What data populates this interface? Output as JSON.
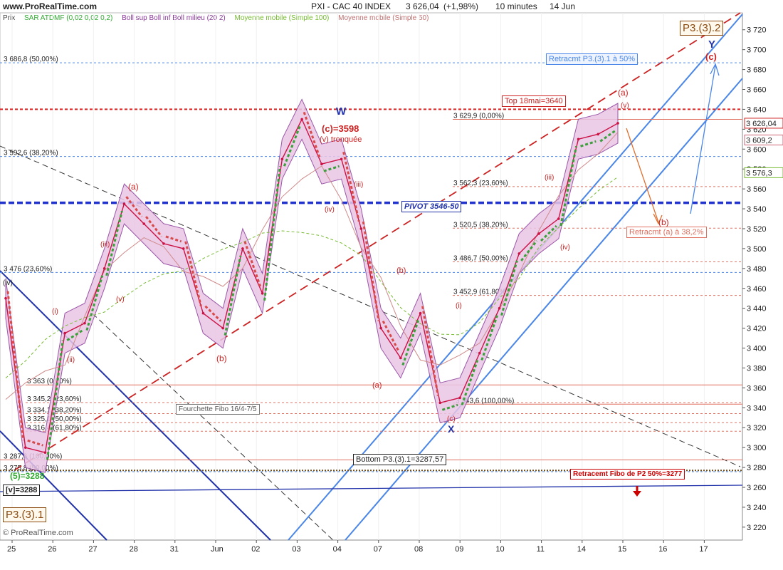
{
  "header": {
    "site": "www.ProRealTime.com",
    "title": "PXI - CAC 40 INDEX",
    "price": "3 626,04",
    "change": "(+1,98%)",
    "timeframe": "10 minutes",
    "date": "14 Jun"
  },
  "legend": {
    "prix": "Prix",
    "sar": "SAR ATDMF (0,02 0,02 0,2)",
    "boll": "Boll sup Boll inf Boll milieu (20 2)",
    "mm100": "Moyenne mobile (Simple 100)",
    "mm50": "Moyenne mobile (Simple 50)"
  },
  "colors": {
    "price": "#cc1144",
    "boll_fill": "#e9c6e6",
    "boll_line": "#8a3a99",
    "sar_up": "#3aa03a",
    "sar_down": "#d84a4a",
    "mm100": "#77bb33",
    "mm50": "#d08a8a",
    "pivot": "#2233cc",
    "fib_line": "#e07060",
    "channel": "#4a86e8",
    "down_channel": "#2233aa",
    "trend_dashed": "#cc2222"
  },
  "chart_data": {
    "type": "line",
    "title": "PXI - CAC 40 INDEX",
    "timeframe": "10 minutes",
    "ylim": [
      3207,
      3737
    ],
    "y_ticks": [
      "3 220",
      "3 240",
      "3 260",
      "3 280",
      "3 300",
      "3 320",
      "3 340",
      "3 360",
      "3 380",
      "3 400",
      "3 420",
      "3 440",
      "3 460",
      "3 480",
      "3 500",
      "3 520",
      "3 540",
      "3 560",
      "3 580",
      "3 600",
      "3 620",
      "3 640",
      "3 660",
      "3 680",
      "3 700",
      "3 720"
    ],
    "x_ticks": [
      "25",
      "26",
      "27",
      "28",
      "31",
      "Jun",
      "02",
      "03",
      "04",
      "07",
      "08",
      "09",
      "10",
      "11",
      "14",
      "15",
      "16",
      "17"
    ],
    "series": [
      {
        "name": "PXI",
        "x": [
          "25",
          "25.5",
          "26",
          "26.5",
          "27",
          "27.5",
          "28",
          "28.5",
          "31",
          "31.5",
          "Jun",
          "Jun.5",
          "02",
          "02.5",
          "03",
          "03.2",
          "03.5",
          "04",
          "04.5",
          "07",
          "07.5",
          "08",
          "08.5",
          "09",
          "09.5",
          "10",
          "10.5",
          "11",
          "11.5",
          "14",
          "14.5",
          "15"
        ],
        "values": [
          3450,
          3300,
          3295,
          3415,
          3425,
          3480,
          3545,
          3525,
          3505,
          3500,
          3435,
          3420,
          3500,
          3455,
          3590,
          3630,
          3585,
          3590,
          3520,
          3420,
          3390,
          3435,
          3345,
          3350,
          3395,
          3440,
          3495,
          3515,
          3530,
          3610,
          3615,
          3626
        ]
      }
    ],
    "levels": [
      {
        "label": "3 686,8 (50,00%)",
        "value": 3686.8
      },
      {
        "label": "3 629,9 (0,00%)",
        "value": 3629.9
      },
      {
        "label": "3 592,6 (38,20%)",
        "value": 3592.6
      },
      {
        "label": "3 562,3 (23,60%)",
        "value": 3562.3
      },
      {
        "label": "3 520,5 (38,20%)",
        "value": 3520.5
      },
      {
        "label": "3 486,7 (50,00%)",
        "value": 3486.7
      },
      {
        "label": "3 476 (23,60%)",
        "value": 3476
      },
      {
        "label": "3 452,9 (61,80%)",
        "value": 3452.9
      },
      {
        "label": "3 363 (0,00%)",
        "value": 3363
      },
      {
        "label": "3 345,2 (23,60%)",
        "value": 3345.2
      },
      {
        "label": "3 343,6 (100,00%)",
        "value": 3343.6
      },
      {
        "label": "3 334,1 (38,20%)",
        "value": 3334.1
      },
      {
        "label": "3 325,1 (50,00%)",
        "value": 3325.1
      },
      {
        "label": "3 316,4 (61,80%)",
        "value": 3316.4
      },
      {
        "label": "3 287,6 (100,00%)",
        "value": 3287.6
      },
      {
        "label": "3 275,8 (50,00%)",
        "value": 3275.8
      }
    ],
    "horizontal_lines": {
      "top": 3640,
      "pivot": 3546,
      "bottom": 3287.57,
      "fibo_p2": 3277
    },
    "current_price_tags": [
      "3 626,04",
      "3 609,2",
      "3 576,3"
    ]
  },
  "annotations": {
    "p3_top": "P3.(3).2",
    "p3_bottom": "P3.(3).1",
    "y": "Y",
    "c_paren": "(c)",
    "w": "W",
    "c3598": "(c)=3598",
    "v_tronquee": "(v) tronquée",
    "a_paren_right": "(a)",
    "v_small": "(v)",
    "b_paren": "(b)",
    "iii_right": "(iii)",
    "iv_right": "(iv)",
    "a_left": "(a)",
    "b_left": "(b)",
    "b_mid": "(b)",
    "a_mid": "(a)",
    "c_mid": "(c)",
    "x": "X",
    "i_mid": "(i)",
    "iii_mid": "(iii)",
    "iv_mid": "(iv)",
    "iii_left": "(iii)",
    "v_left": "(v)",
    "i_left": "(i)",
    "ii_left": "(ii)",
    "iv_left": "(iv)",
    "wave5": "(5)=3288",
    "v3288": "[v]=3288",
    "retr_p3": "Retracmt P3.(3).1 à 50%",
    "top18": "Top 18mai=3640",
    "pivot": "PIVOT 3546-50",
    "retr_a": "Retracmt (a) à 38,2%",
    "fourchette": "Fourchette Fibo 16/4-7/5",
    "bottom": "Bottom P3.(3).1=3287,57",
    "retr_p2": "Retracemt Fibo de P2 50%=3277",
    "watermark": "© ProRealTime.com"
  }
}
